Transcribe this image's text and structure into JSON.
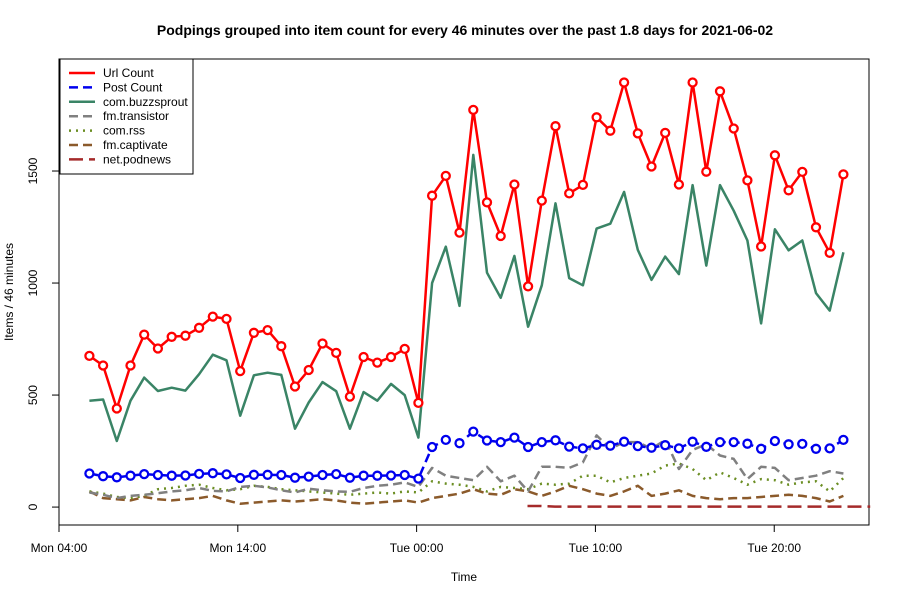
{
  "chart_data": {
    "type": "line",
    "title": "Podpings grouped into item count for every 46 minutes  over the past 1.8 days for 2021-06-02",
    "xlabel": "Time",
    "ylabel": "Items / 46 minutes",
    "x_ticks": [
      "Mon 04:00",
      "Mon 14:00",
      "Tue 00:00",
      "Tue 10:00",
      "Tue 20:00"
    ],
    "xlim_hours": [
      0,
      45.3
    ],
    "y_ticks": [
      0,
      500,
      1000,
      1500
    ],
    "ylim": [
      -80,
      2000
    ],
    "grid": false,
    "legend_position": "top-left",
    "interval_hours": 0.7667,
    "series": [
      {
        "name": "Url Count",
        "color": "#ff0000",
        "dash": "solid",
        "markers": true,
        "start_hour": 1.7,
        "values": [
          675,
          632,
          440,
          632,
          770,
          708,
          760,
          765,
          800,
          850,
          840,
          607,
          778,
          790,
          718,
          538,
          612,
          730,
          688,
          493,
          670,
          645,
          670,
          706,
          465,
          1390,
          1478,
          1225,
          1773,
          1360,
          1210,
          1440,
          985,
          1368,
          1700,
          1400,
          1438,
          1740,
          1680,
          1895,
          1668,
          1520,
          1670,
          1440,
          1895,
          1497,
          1856,
          1690,
          1458,
          1163,
          1570,
          1414,
          1496,
          1249,
          1135,
          1485
        ]
      },
      {
        "name": "Post Count",
        "color": "#0000ee",
        "dash": "dashed",
        "markers": true,
        "start_hour": 1.7,
        "values": [
          150,
          138,
          133,
          140,
          147,
          143,
          140,
          141,
          148,
          151,
          146,
          130,
          144,
          144,
          143,
          131,
          136,
          143,
          147,
          131,
          140,
          140,
          141,
          143,
          127,
          268,
          300,
          285,
          337,
          297,
          290,
          310,
          268,
          290,
          298,
          270,
          262,
          278,
          274,
          292,
          272,
          265,
          276,
          262,
          292,
          269,
          290,
          290,
          283,
          260,
          295,
          280,
          282,
          260,
          262,
          300
        ]
      },
      {
        "name": "com.buzzsprout",
        "color": "#3a8466",
        "dash": "solid",
        "markers": false,
        "start_hour": 1.7,
        "values": [
          475,
          480,
          295,
          475,
          578,
          518,
          533,
          520,
          593,
          680,
          655,
          408,
          588,
          600,
          590,
          350,
          467,
          558,
          517,
          350,
          513,
          475,
          550,
          500,
          310,
          1000,
          1162,
          898,
          1572,
          1046,
          934,
          1121,
          805,
          990,
          1356,
          1022,
          990,
          1243,
          1265,
          1407,
          1148,
          1014,
          1118,
          1040,
          1437,
          1078,
          1437,
          1323,
          1190,
          820,
          1240,
          1146,
          1190,
          955,
          877,
          1137
        ]
      },
      {
        "name": "fm.transistor",
        "color": "#808080",
        "dash": "dashed",
        "markers": false,
        "start_hour": 1.7,
        "values": [
          65,
          55,
          40,
          50,
          55,
          62,
          70,
          75,
          85,
          72,
          70,
          90,
          95,
          88,
          75,
          65,
          82,
          75,
          70,
          68,
          85,
          95,
          100,
          110,
          90,
          175,
          140,
          130,
          120,
          180,
          115,
          140,
          70,
          180,
          180,
          175,
          200,
          320,
          260,
          290,
          290,
          260,
          300,
          170,
          255,
          280,
          230,
          215,
          125,
          180,
          175,
          120,
          130,
          140,
          160,
          150
        ]
      },
      {
        "name": "com.rss",
        "color": "#6b8e23",
        "dash": "dotted",
        "markers": false,
        "start_hour": 1.7,
        "values": [
          70,
          60,
          45,
          40,
          50,
          80,
          85,
          95,
          100,
          85,
          75,
          80,
          95,
          90,
          80,
          75,
          70,
          65,
          60,
          55,
          60,
          65,
          60,
          70,
          65,
          115,
          105,
          100,
          90,
          70,
          90,
          85,
          80,
          105,
          100,
          105,
          140,
          140,
          110,
          130,
          140,
          150,
          185,
          195,
          170,
          120,
          155,
          130,
          100,
          125,
          120,
          100,
          110,
          115,
          70,
          130
        ]
      },
      {
        "name": "fm.captivate",
        "color": "#8b5a2b",
        "dash": "dashed",
        "markers": false,
        "start_hour": 1.7,
        "values": [
          70,
          40,
          35,
          30,
          45,
          35,
          30,
          35,
          40,
          50,
          30,
          15,
          20,
          25,
          30,
          25,
          30,
          35,
          30,
          20,
          15,
          20,
          25,
          30,
          20,
          40,
          50,
          60,
          80,
          60,
          55,
          80,
          70,
          50,
          70,
          95,
          80,
          60,
          50,
          70,
          95,
          50,
          60,
          75,
          50,
          40,
          35,
          40,
          40,
          45,
          50,
          55,
          50,
          40,
          25,
          50
        ]
      },
      {
        "name": "net.podnews",
        "color": "#a52a2a",
        "dash": "longdash",
        "markers": false,
        "start_hour": 26.2,
        "values": [
          5,
          5,
          2,
          2,
          2,
          2,
          2,
          2,
          2,
          2,
          2,
          2,
          2,
          2,
          2,
          2,
          2,
          2,
          2,
          2,
          2,
          2,
          2,
          2,
          2,
          2
        ]
      }
    ]
  }
}
